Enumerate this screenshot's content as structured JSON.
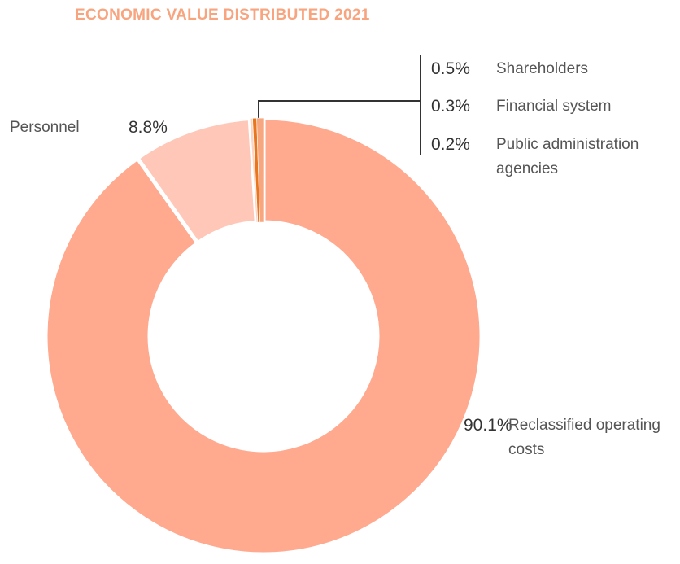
{
  "chart_data": {
    "type": "donut",
    "title": "ECONOMIC VALUE DISTRIBUTED 2021",
    "categories": [
      "Reclassified operating costs",
      "Personnel",
      "Public administration agencies",
      "Financial system",
      "Shareholders"
    ],
    "values": [
      90.1,
      8.8,
      0.2,
      0.3,
      0.5
    ],
    "value_labels": [
      "90.1%",
      "8.8%",
      "0.2%",
      "0.3%",
      "0.5%"
    ],
    "colors": [
      "#ffa98f",
      "#fec7b8",
      "#fdd3c4",
      "#e8761f",
      "#f6a77f"
    ]
  }
}
